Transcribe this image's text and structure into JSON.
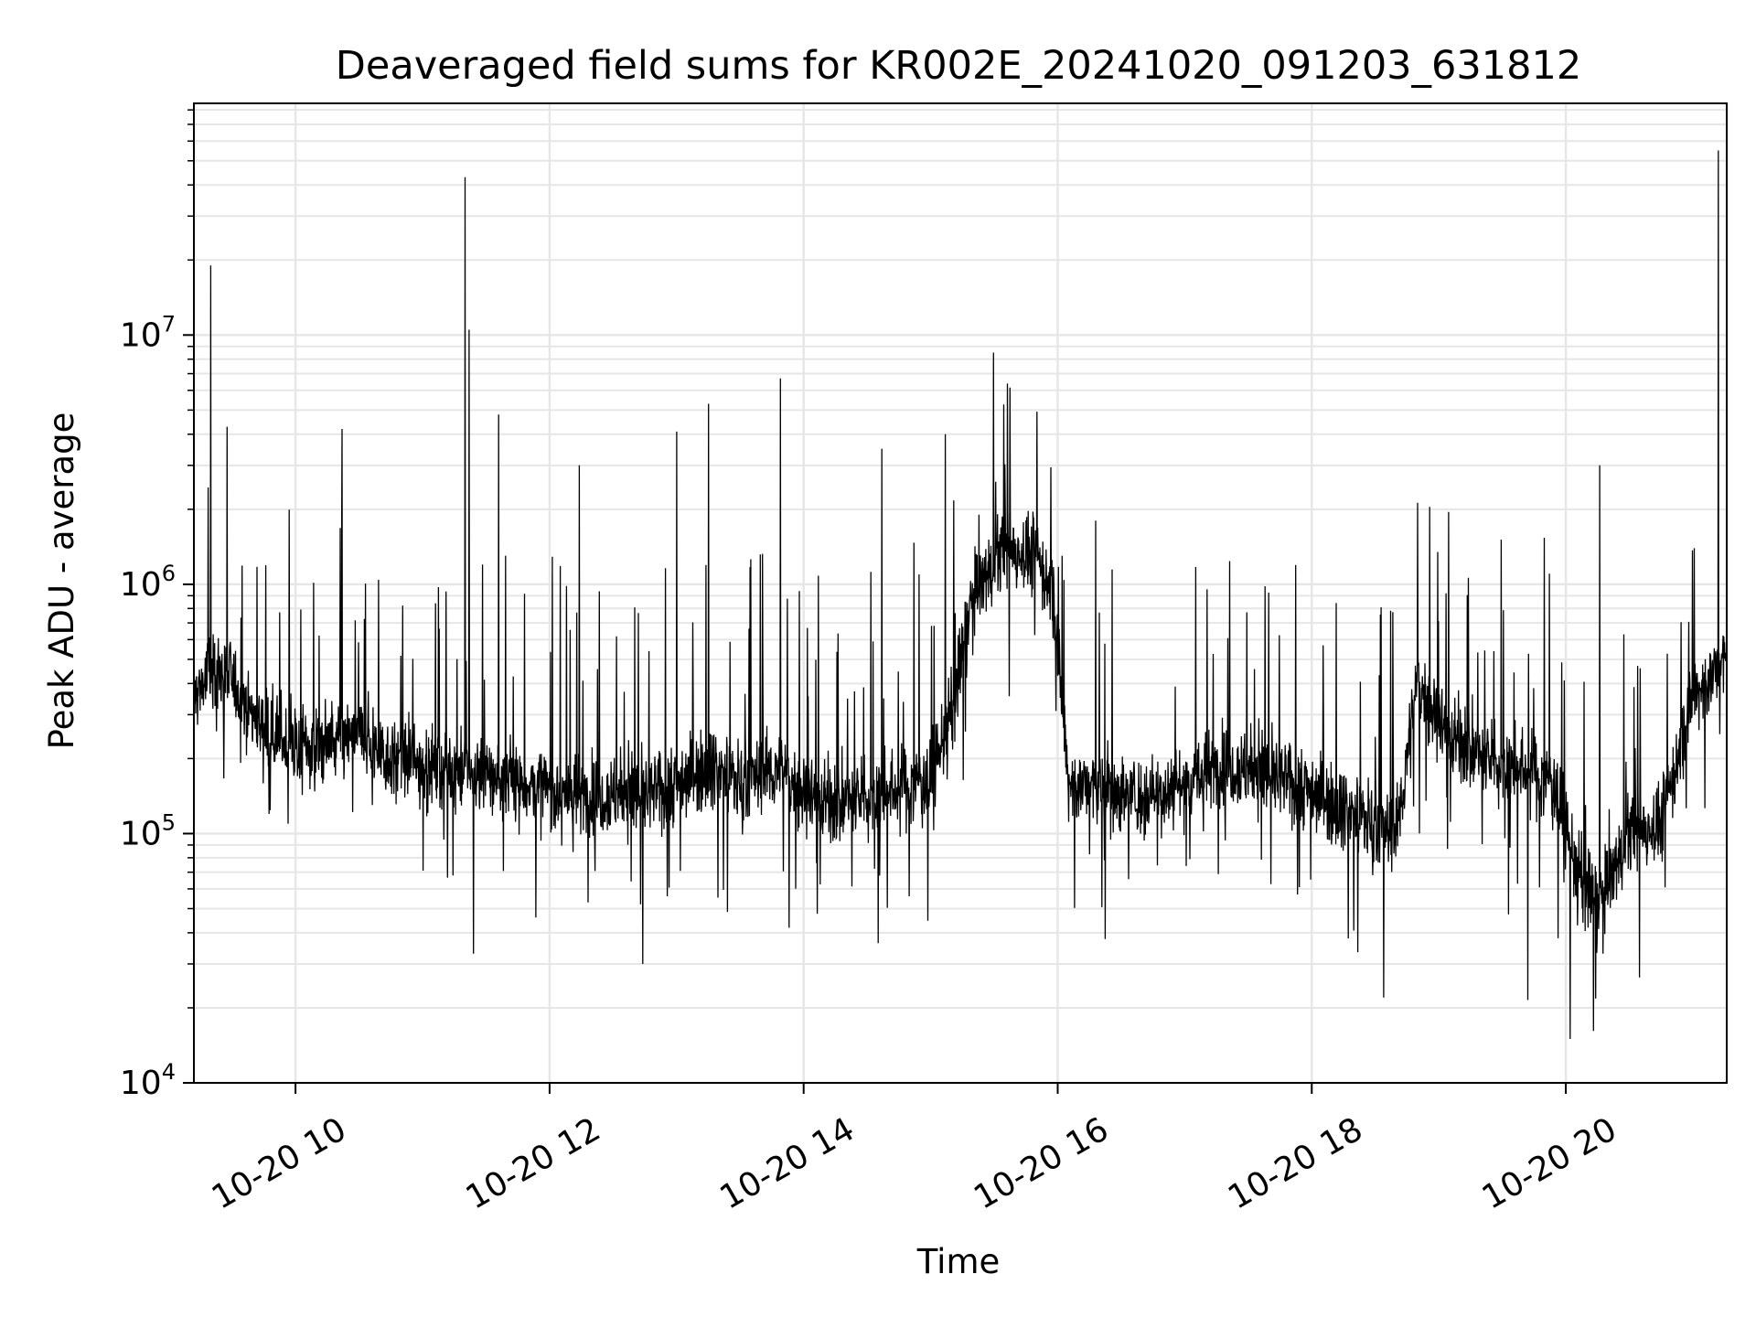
{
  "chart_data": {
    "type": "line",
    "title": "Deaveraged field sums for KR002E_20241020_091203_631812",
    "xlabel": "Time",
    "ylabel": "Peak ADU - average",
    "yscale": "log",
    "ylim": [
      10000,
      85000000
    ],
    "xlim": [
      "10-20 09:12",
      "10-20 21:16"
    ],
    "grid": true,
    "line_color": "#000000",
    "grid_color": "#e6e6e6",
    "x_ticks": [
      "10-20 10",
      "10-20 12",
      "10-20 14",
      "10-20 16",
      "10-20 18",
      "10-20 20"
    ],
    "y_ticks": [
      {
        "base": "10",
        "exp": "4"
      },
      {
        "base": "10",
        "exp": "5"
      },
      {
        "base": "10",
        "exp": "6"
      },
      {
        "base": "10",
        "exp": "7"
      }
    ],
    "series": [
      {
        "x": [
          "10-20 09:12",
          "10-20 09:20",
          "10-20 09:30",
          "10-20 09:40",
          "10-20 09:50",
          "10-20 10:00",
          "10-20 10:15",
          "10-20 10:30",
          "10-20 10:45",
          "10-20 11:00",
          "10-20 11:15",
          "10-20 11:30",
          "10-20 11:45",
          "10-20 12:00",
          "10-20 12:15",
          "10-20 12:30",
          "10-20 12:45",
          "10-20 13:00",
          "10-20 13:15",
          "10-20 13:30",
          "10-20 13:45",
          "10-20 14:00",
          "10-20 14:15",
          "10-20 14:30",
          "10-20 14:45",
          "10-20 15:00",
          "10-20 15:10",
          "10-20 15:20",
          "10-20 15:35",
          "10-20 15:50",
          "10-20 15:58",
          "10-20 16:05",
          "10-20 16:20",
          "10-20 16:40",
          "10-20 17:00",
          "10-20 17:20",
          "10-20 17:40",
          "10-20 18:00",
          "10-20 18:20",
          "10-20 18:40",
          "10-20 18:50",
          "10-20 19:05",
          "10-20 19:20",
          "10-20 19:40",
          "10-20 19:55",
          "10-20 20:05",
          "10-20 20:15",
          "10-20 20:30",
          "10-20 20:45",
          "10-20 21:00",
          "10-20 21:16"
        ],
        "y": [
          350000,
          450000,
          420000,
          300000,
          250000,
          220000,
          230000,
          250000,
          200000,
          190000,
          180000,
          170000,
          160000,
          150000,
          140000,
          145000,
          140000,
          160000,
          190000,
          160000,
          180000,
          150000,
          130000,
          140000,
          150000,
          170000,
          300000,
          900000,
          1400000,
          1300000,
          900000,
          160000,
          150000,
          140000,
          160000,
          190000,
          170000,
          150000,
          120000,
          100000,
          400000,
          250000,
          200000,
          180000,
          160000,
          70000,
          50000,
          100000,
          110000,
          350000,
          500000
        ]
      }
    ],
    "spikes": [
      {
        "x": "10-20 09:20",
        "y": 19000000
      },
      {
        "x": "10-20 10:22",
        "y": 4200000
      },
      {
        "x": "10-20 11:20",
        "y": 43000000
      },
      {
        "x": "10-20 11:22",
        "y": 10500000
      },
      {
        "x": "10-20 11:36",
        "y": 4800000
      },
      {
        "x": "10-20 12:14",
        "y": 3000000
      },
      {
        "x": "10-20 13:00",
        "y": 4100000
      },
      {
        "x": "10-20 13:15",
        "y": 5300000
      },
      {
        "x": "10-20 13:49",
        "y": 6700000
      },
      {
        "x": "10-20 14:37",
        "y": 3500000
      },
      {
        "x": "10-20 15:07",
        "y": 4000000
      },
      {
        "x": "10-20 16:18",
        "y": 1800000
      },
      {
        "x": "10-20 20:16",
        "y": 3000000
      },
      {
        "x": "10-20 21:12",
        "y": 55000000
      }
    ],
    "dips": [
      {
        "x": "10-20 11:24",
        "y": 33000
      },
      {
        "x": "10-20 12:44",
        "y": 30000
      },
      {
        "x": "10-20 18:34",
        "y": 22000
      },
      {
        "x": "10-20 19:42",
        "y": 21500
      },
      {
        "x": "10-20 20:02",
        "y": 15000
      }
    ]
  }
}
